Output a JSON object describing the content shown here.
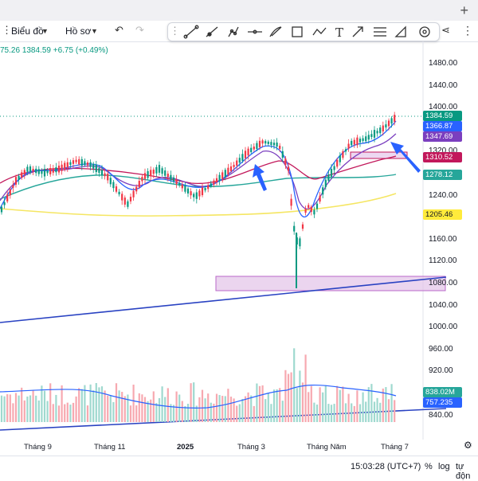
{
  "toolbar": {
    "chart_label": "Biểu đồ",
    "profile_label": "Hồ sơ"
  },
  "legend": {
    "prefix": "75.26",
    "close": "1384.59",
    "change": "+6.75 (+0.49%)"
  },
  "price_axis": [
    "1480.00",
    "1440.00",
    "1400.00",
    "1360.00",
    "1320.00",
    "1280.00",
    "1240.00",
    "1200.00",
    "1160.00",
    "1120.00",
    "1080.00",
    "1040.00",
    "1000.00",
    "960.00",
    "920.00",
    "880.00",
    "840.00"
  ],
  "price_tags": [
    {
      "text": "1384.59",
      "bg": "#089981",
      "fg": "#ffffff"
    },
    {
      "text": "1366.87",
      "bg": "#2962ff",
      "fg": "#ffffff"
    },
    {
      "text": "1347.69",
      "bg": "#7b3fbf",
      "fg": "#ffffff"
    },
    {
      "text": "1310.52",
      "bg": "#c2185b",
      "fg": "#ffffff"
    },
    {
      "text": "1278.12",
      "bg": "#26a69a",
      "fg": "#ffffff"
    },
    {
      "text": "1205.46",
      "bg": "#ffeb3b",
      "fg": "#131722"
    },
    {
      "text": "838.02M",
      "bg": "#26a69a",
      "fg": "#ffffff"
    },
    {
      "text": "757.235",
      "bg": "#2962ff",
      "fg": "#ffffff"
    }
  ],
  "time_axis": [
    "Tháng 9",
    "Tháng 11",
    "2025",
    "Tháng 3",
    "Tháng Năm",
    "Tháng 7"
  ],
  "status": {
    "time": "15:03:28 (UTC+7)",
    "percent": "%",
    "log": "log",
    "auto": "tự độn"
  },
  "colors": {
    "up": "#089981",
    "down": "#f23645",
    "ma_blue": "#2962ff",
    "ma_purple": "#7b3fbf",
    "ma_red": "#c2185b",
    "ma_teal": "#26a69a",
    "ma_yellow": "#f5e663",
    "zone": "#e1bee7"
  }
}
